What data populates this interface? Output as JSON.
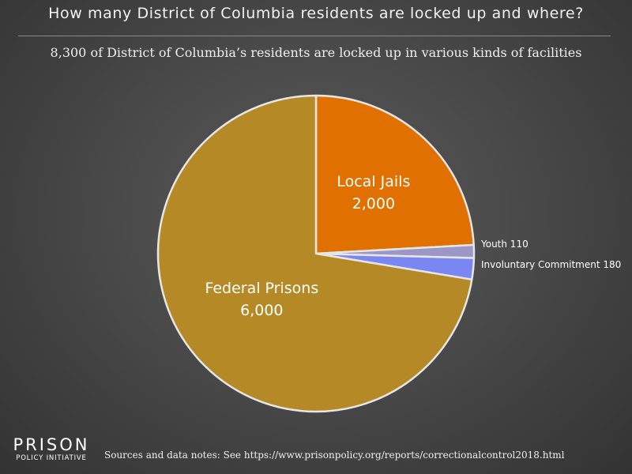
{
  "title": "How many District of Columbia residents are locked up and where?",
  "subtitle": "8,300 of District of Columbia’s residents are locked up in various kinds of facilities",
  "footer": {
    "source": "Sources and data notes: See https://www.prisonpolicy.org/reports/correctionalcontrol2018.html",
    "logo_top": "PRISON",
    "logo_bottom": "POLICY INITIATIVE"
  },
  "chart_data": {
    "type": "pie",
    "total": 8300,
    "slices": [
      {
        "label": "Local Jails",
        "value": 2000,
        "value_label": "2,000",
        "color": "#e07000",
        "label_position": "inside"
      },
      {
        "label": "Youth",
        "value": 110,
        "value_label": "110",
        "color": "#9d97c8",
        "label_position": "outside"
      },
      {
        "label": "Involuntary Commitment",
        "value": 180,
        "value_label": "180",
        "color": "#7a86f2",
        "label_position": "outside"
      },
      {
        "label": "Federal Prisons",
        "value": 6000,
        "value_label": "6,000",
        "color": "#b58a26",
        "label_position": "inside"
      }
    ],
    "start_angle": "12 o'clock",
    "direction": "clockwise",
    "slice_border_color": "#e6e6e6"
  }
}
